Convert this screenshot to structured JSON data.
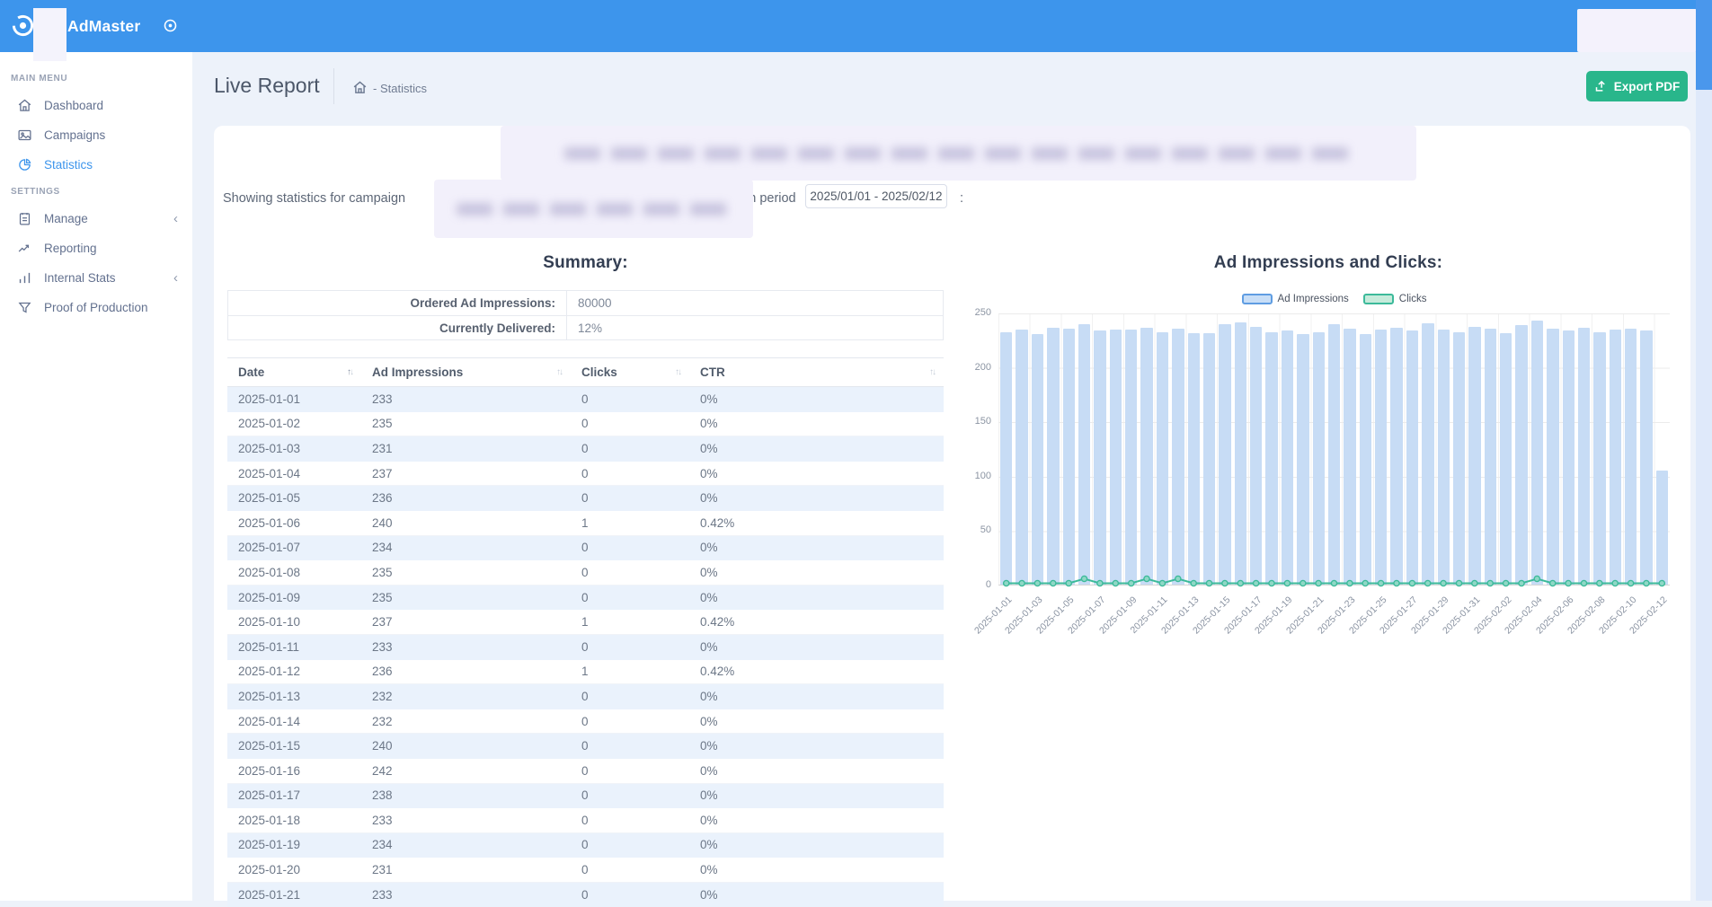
{
  "topbar": {
    "brand": "AdMaster"
  },
  "sidebar": {
    "main_menu_label": "MAIN MENU",
    "settings_label": "SETTINGS",
    "items": [
      {
        "label": "Dashboard"
      },
      {
        "label": "Campaigns"
      },
      {
        "label": "Statistics"
      },
      {
        "label": "Manage"
      },
      {
        "label": "Reporting"
      },
      {
        "label": "Internal Stats"
      },
      {
        "label": "Proof of Production"
      }
    ],
    "collapse_chevron": "‹"
  },
  "header": {
    "title": "Live Report",
    "breadcrumb": "- Statistics",
    "export_label": "Export PDF"
  },
  "filter": {
    "prefix": "Showing statistics for campaign",
    "period_label": "in period",
    "date_range": "2025/01/01 - 2025/02/12",
    "colon": ":"
  },
  "summary": {
    "title": "Summary:",
    "rows": [
      {
        "label": "Ordered Ad Impressions:",
        "value": "80000"
      },
      {
        "label": "Currently Delivered:",
        "value": "12%"
      }
    ]
  },
  "table": {
    "columns": [
      "Date",
      "Ad Impressions",
      "Clicks",
      "CTR"
    ],
    "sorted_column": "Date",
    "sort_direction": "asc",
    "rows": [
      [
        "2025-01-01",
        "233",
        "0",
        "0%"
      ],
      [
        "2025-01-02",
        "235",
        "0",
        "0%"
      ],
      [
        "2025-01-03",
        "231",
        "0",
        "0%"
      ],
      [
        "2025-01-04",
        "237",
        "0",
        "0%"
      ],
      [
        "2025-01-05",
        "236",
        "0",
        "0%"
      ],
      [
        "2025-01-06",
        "240",
        "1",
        "0.42%"
      ],
      [
        "2025-01-07",
        "234",
        "0",
        "0%"
      ],
      [
        "2025-01-08",
        "235",
        "0",
        "0%"
      ],
      [
        "2025-01-09",
        "235",
        "0",
        "0%"
      ],
      [
        "2025-01-10",
        "237",
        "1",
        "0.42%"
      ],
      [
        "2025-01-11",
        "233",
        "0",
        "0%"
      ],
      [
        "2025-01-12",
        "236",
        "1",
        "0.42%"
      ],
      [
        "2025-01-13",
        "232",
        "0",
        "0%"
      ],
      [
        "2025-01-14",
        "232",
        "0",
        "0%"
      ],
      [
        "2025-01-15",
        "240",
        "0",
        "0%"
      ],
      [
        "2025-01-16",
        "242",
        "0",
        "0%"
      ],
      [
        "2025-01-17",
        "238",
        "0",
        "0%"
      ],
      [
        "2025-01-18",
        "233",
        "0",
        "0%"
      ],
      [
        "2025-01-19",
        "234",
        "0",
        "0%"
      ],
      [
        "2025-01-20",
        "231",
        "0",
        "0%"
      ],
      [
        "2025-01-21",
        "233",
        "0",
        "0%"
      ]
    ]
  },
  "chart_data": {
    "type": "bar",
    "title": "Ad Impressions and Clicks:",
    "categories": [
      "2025-01-01",
      "2025-01-02",
      "2025-01-03",
      "2025-01-04",
      "2025-01-05",
      "2025-01-06",
      "2025-01-07",
      "2025-01-08",
      "2025-01-09",
      "2025-01-10",
      "2025-01-11",
      "2025-01-12",
      "2025-01-13",
      "2025-01-14",
      "2025-01-15",
      "2025-01-16",
      "2025-01-17",
      "2025-01-18",
      "2025-01-19",
      "2025-01-20",
      "2025-01-21",
      "2025-01-22",
      "2025-01-23",
      "2025-01-24",
      "2025-01-25",
      "2025-01-26",
      "2025-01-27",
      "2025-01-28",
      "2025-01-29",
      "2025-01-30",
      "2025-01-31",
      "2025-02-01",
      "2025-02-02",
      "2025-02-03",
      "2025-02-04",
      "2025-02-05",
      "2025-02-06",
      "2025-02-07",
      "2025-02-08",
      "2025-02-09",
      "2025-02-10",
      "2025-02-11",
      "2025-02-12"
    ],
    "series": [
      {
        "name": "Ad Impressions",
        "type": "bar",
        "color": "#c7dcf5",
        "values": [
          233,
          235,
          231,
          237,
          236,
          240,
          234,
          235,
          235,
          237,
          233,
          236,
          232,
          232,
          240,
          242,
          238,
          233,
          234,
          231,
          233,
          240,
          236,
          231,
          235,
          237,
          234,
          241,
          235,
          233,
          238,
          236,
          232,
          239,
          243,
          236,
          234,
          237,
          233,
          235,
          236,
          234,
          105
        ]
      },
      {
        "name": "Clicks",
        "type": "line",
        "color": "#3cba9a",
        "values": [
          0,
          0,
          0,
          0,
          0,
          1,
          0,
          0,
          0,
          1,
          0,
          1,
          0,
          0,
          0,
          0,
          0,
          0,
          0,
          0,
          0,
          0,
          0,
          0,
          0,
          0,
          0,
          0,
          0,
          0,
          0,
          0,
          0,
          0,
          1,
          0,
          0,
          0,
          0,
          0,
          0,
          0,
          0
        ]
      }
    ],
    "ylim": [
      0,
      250
    ],
    "yticks": [
      250,
      200,
      150,
      100,
      50,
      0
    ],
    "x_label_every": 2,
    "grid": true,
    "legend_position": "top"
  }
}
